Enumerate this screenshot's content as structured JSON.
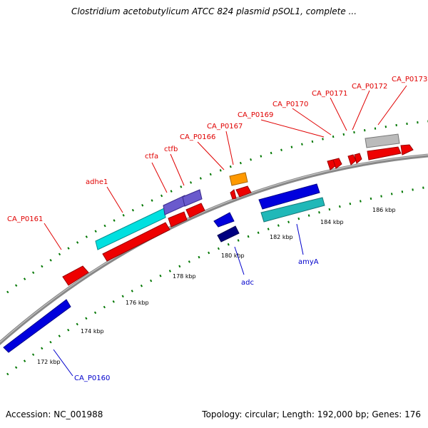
{
  "title": "Clostridium acetobutylicum ATCC 824 plasmid pSOL1, complete ...",
  "footer": {
    "accession": "Accession: NC_001988",
    "stats": "Topology: circular; Length: 192,000 bp; Genes: 176"
  },
  "colors": {
    "backbone": "#888888",
    "forward_gene": "#ee0000",
    "reverse_gene": "#0000dd",
    "cyan_gene": "#00e0e0",
    "teal_gene": "#20b8b8",
    "purple_gene": "#6a5acd",
    "orange_gene": "#ff9900",
    "navy_gene": "#000080",
    "grey_gene": "#bbbbbb",
    "tick_green": "#007700",
    "label_red": "#e00000",
    "label_blue": "#0000cc"
  },
  "kbp_ticks": [
    "172 kbp",
    "174 kbp",
    "176 kbp",
    "178 kbp",
    "180 kbp",
    "182 kbp",
    "184 kbp",
    "186 kbp"
  ],
  "gene_labels_forward": [
    "CA_P0161",
    "adhe1",
    "ctfa",
    "ctfb",
    "CA_P0166",
    "CA_P0167",
    "CA_P0169",
    "CA_P0170",
    "CA_P0171",
    "CA_P0172",
    "CA_P0173"
  ],
  "gene_labels_reverse": [
    "CA_P0160",
    "adc",
    "amyA"
  ]
}
